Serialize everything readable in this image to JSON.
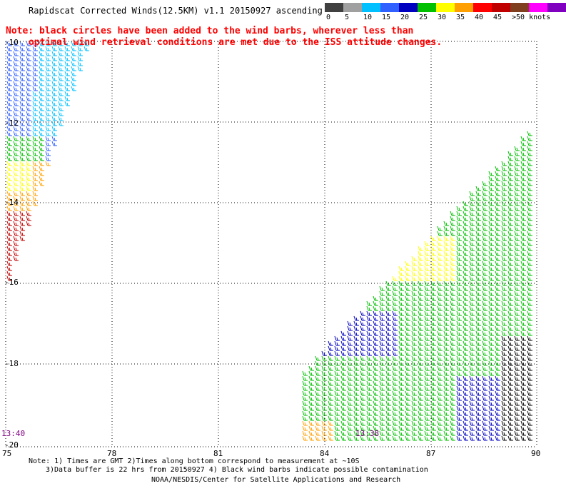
{
  "header": {
    "title": "Rapidscat Corrected Winds(12.5KM) v1.1 20150927 ascending",
    "note_line1": "Note: black circles have been added to the wind barbs, wherever less than",
    "note_line2": "optimal wind retrieval conditions are met due to the ISS attitude changes."
  },
  "legend": {
    "colors": [
      "#404040",
      "#a0a0a0",
      "#00c0ff",
      "#3060ff",
      "#0000c0",
      "#00c000",
      "#ffff00",
      "#ffa000",
      "#ff0000",
      "#c00000",
      "#804020",
      "#ff00ff",
      "#8000c0"
    ],
    "ticks": [
      "0",
      "5",
      "10",
      "15",
      "20",
      "25",
      "30",
      "35",
      "40",
      "45",
      ">50 knots"
    ]
  },
  "map": {
    "lat_labels": [
      "-10",
      "-12",
      "-14",
      "-16",
      "-18",
      "-20"
    ],
    "lon_labels": [
      "75",
      "78",
      "81",
      "84",
      "87",
      "90"
    ],
    "time_labels": [
      "13:40",
      "13:38"
    ]
  },
  "footer": {
    "line1": "Note: 1) Times are GMT 2)Times along bottom correspond to measurement at ~10S",
    "line2": "3)Data buffer is 22 hrs from 20150927 4) Black wind barbs indicate possible contamination",
    "line3": "NOAA/NESDIS/Center for Satellite Applications and Research"
  }
}
